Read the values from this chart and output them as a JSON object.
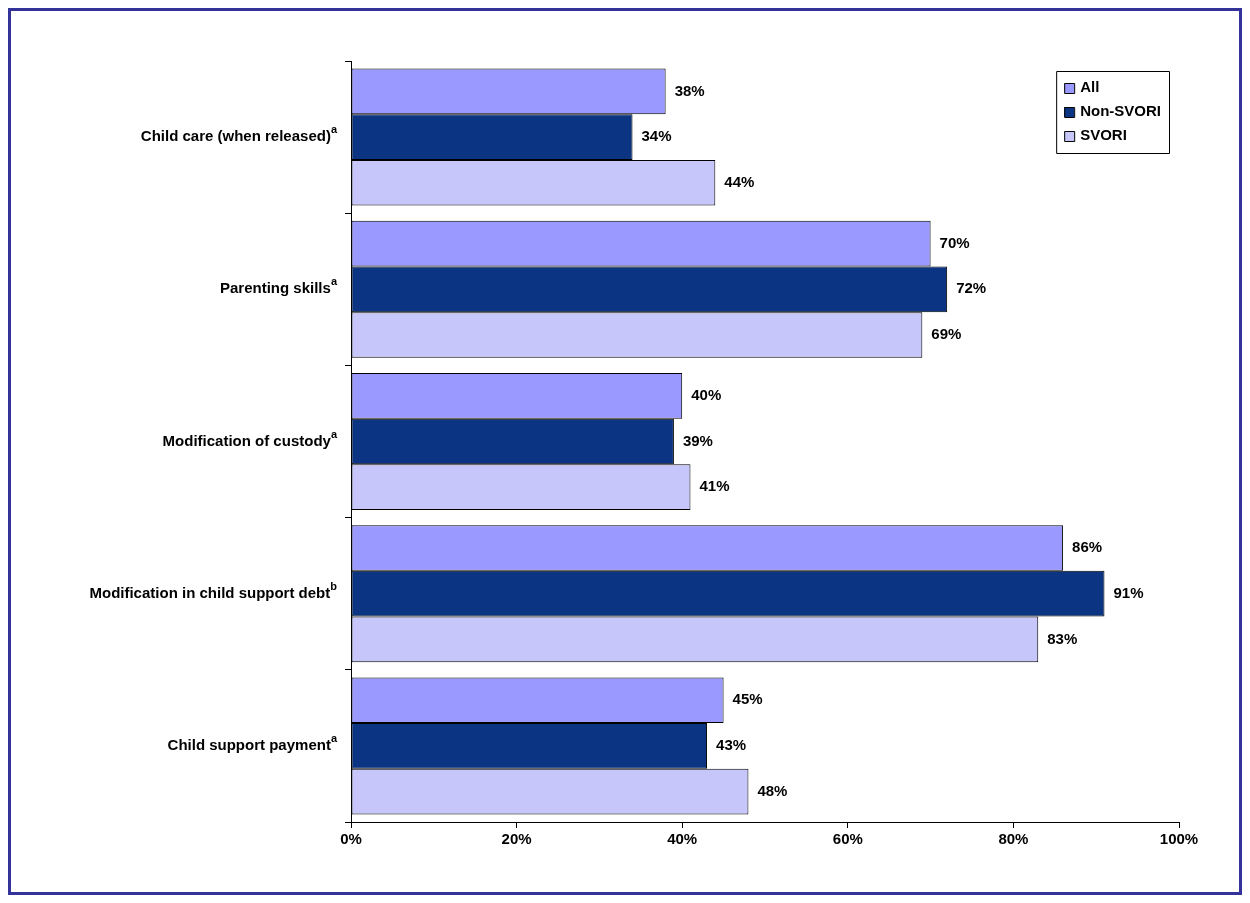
{
  "chart_data": {
    "type": "bar",
    "orientation": "horizontal",
    "categories": [
      "Child care (when released)$^{a}$",
      "Parenting skills$^{a}$",
      "Modification of custody$^{a}$",
      "Modification in child support debt$^{b}$",
      "Child support payment$^{a}$"
    ],
    "series": [
      {
        "name": "All",
        "color": "#9999ff",
        "values": [
          38,
          70,
          40,
          86,
          45
        ],
        "value_labels": [
          "38%",
          "70%",
          "40%",
          "86%",
          "45%"
        ]
      },
      {
        "name": "Non-SVORI",
        "color": "#0b3582",
        "values": [
          34,
          72,
          39,
          91,
          43
        ],
        "value_labels": [
          "34%",
          "72%",
          "39%",
          "91%",
          "43%"
        ]
      },
      {
        "name": "SVORI",
        "color": "#c6c6fa",
        "values": [
          44,
          69,
          41,
          83,
          48
        ],
        "value_labels": [
          "44%",
          "69%",
          "41%",
          "83%",
          "48%"
        ]
      }
    ],
    "xlim": [
      0,
      100
    ],
    "xticks": [
      {
        "value": 0,
        "label": "0%"
      },
      {
        "value": 20,
        "label": "20%"
      },
      {
        "value": 40,
        "label": "40%"
      },
      {
        "value": 60,
        "label": "60%"
      },
      {
        "value": 80,
        "label": "80%"
      },
      {
        "value": 100,
        "label": "100%"
      }
    ],
    "grid": false,
    "legend": "top right"
  }
}
